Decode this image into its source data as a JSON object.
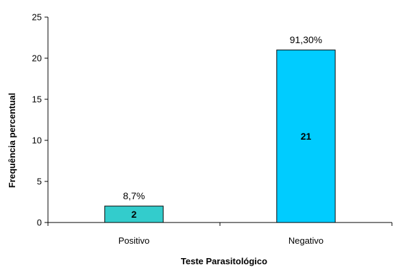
{
  "chart_data": {
    "type": "bar",
    "categories": [
      "Positivo",
      "Negativo"
    ],
    "values": [
      2,
      21
    ],
    "percent_labels": [
      "8,7%",
      "91,30%"
    ],
    "value_labels": [
      "2",
      "21"
    ],
    "bar_colors": [
      "#33CCCC",
      "#00CCFF"
    ],
    "xlabel": "Teste Parasitológico",
    "ylabel": "Frequência percentual",
    "ylim": [
      0,
      25
    ],
    "yticks": [
      0,
      5,
      10,
      15,
      20,
      25
    ],
    "ytick_labels": [
      "0",
      "5",
      "10",
      "15",
      "20",
      "25"
    ],
    "grid": false,
    "legend": "none"
  }
}
